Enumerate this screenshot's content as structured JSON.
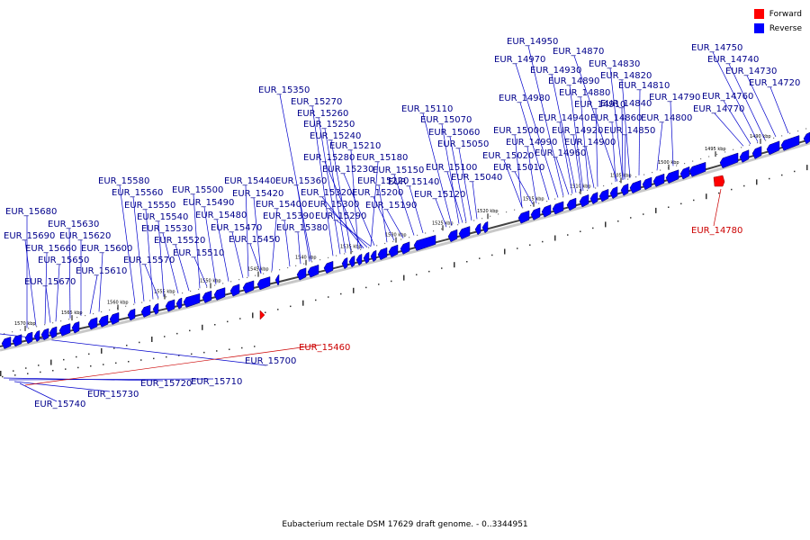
{
  "legend": {
    "forward": {
      "label": "Forward",
      "color": "#ff0000"
    },
    "reverse": {
      "label": "Reverse",
      "color": "#0000ff"
    }
  },
  "caption": "Eubacterium rectale DSM 17629 draft genome. - 0..3344951",
  "colors": {
    "backbone": "#444444",
    "forward": "#ff0000",
    "reverse": "#0000ff",
    "leader_reverse": "#0000cc",
    "leader_forward": "#cc0000",
    "text_reverse": "#00008b",
    "text_forward": "#cc0000"
  },
  "tick_labels": [
    "1570 kbp",
    "1565 kbp",
    "1560 kbp",
    "1555 kbp",
    "1550 kbp",
    "1545 kbp",
    "1540 kbp",
    "1535 kbp",
    "1530 kbp",
    "1525 kbp",
    "1520 kbp",
    "1515 kbp",
    "1510 kbp",
    "1505 kbp",
    "1500 kbp",
    "1495 kbp",
    "1490 kbp"
  ],
  "genes": [
    {
      "id": "EUR_15680",
      "strand": "reverse"
    },
    {
      "id": "EUR_15690",
      "strand": "reverse"
    },
    {
      "id": "EUR_15670",
      "strand": "reverse"
    },
    {
      "id": "EUR_15660",
      "strand": "reverse"
    },
    {
      "id": "EUR_15650",
      "strand": "reverse"
    },
    {
      "id": "EUR_15630",
      "strand": "reverse"
    },
    {
      "id": "EUR_15620",
      "strand": "reverse"
    },
    {
      "id": "EUR_15600",
      "strand": "reverse"
    },
    {
      "id": "EUR_15610",
      "strand": "reverse"
    },
    {
      "id": "EUR_15580",
      "strand": "reverse"
    },
    {
      "id": "EUR_15560",
      "strand": "reverse"
    },
    {
      "id": "EUR_15550",
      "strand": "reverse"
    },
    {
      "id": "EUR_15540",
      "strand": "reverse"
    },
    {
      "id": "EUR_15530",
      "strand": "reverse"
    },
    {
      "id": "EUR_15570",
      "strand": "reverse"
    },
    {
      "id": "EUR_15520",
      "strand": "reverse"
    },
    {
      "id": "EUR_15510",
      "strand": "reverse"
    },
    {
      "id": "EUR_15500",
      "strand": "reverse"
    },
    {
      "id": "EUR_15490",
      "strand": "reverse"
    },
    {
      "id": "EUR_15480",
      "strand": "reverse"
    },
    {
      "id": "EUR_15470",
      "strand": "reverse"
    },
    {
      "id": "EUR_15450",
      "strand": "reverse"
    },
    {
      "id": "EUR_15440",
      "strand": "reverse"
    },
    {
      "id": "EUR_15420",
      "strand": "reverse"
    },
    {
      "id": "EUR_15400",
      "strand": "reverse"
    },
    {
      "id": "EUR_15390",
      "strand": "reverse"
    },
    {
      "id": "EUR_15380",
      "strand": "reverse"
    },
    {
      "id": "EUR_15360",
      "strand": "reverse"
    },
    {
      "id": "EUR_15350",
      "strand": "reverse"
    },
    {
      "id": "EUR_15270",
      "strand": "reverse"
    },
    {
      "id": "EUR_15260",
      "strand": "reverse"
    },
    {
      "id": "EUR_15250",
      "strand": "reverse"
    },
    {
      "id": "EUR_15240",
      "strand": "reverse"
    },
    {
      "id": "EUR_15210",
      "strand": "reverse"
    },
    {
      "id": "EUR_15280",
      "strand": "reverse"
    },
    {
      "id": "EUR_15180",
      "strand": "reverse"
    },
    {
      "id": "EUR_15230",
      "strand": "reverse"
    },
    {
      "id": "EUR_15220",
      "strand": "reverse"
    },
    {
      "id": "EUR_15320",
      "strand": "reverse"
    },
    {
      "id": "EUR_15300",
      "strand": "reverse"
    },
    {
      "id": "EUR_15290",
      "strand": "reverse"
    },
    {
      "id": "EUR_15200",
      "strand": "reverse"
    },
    {
      "id": "EUR_15190",
      "strand": "reverse"
    },
    {
      "id": "EUR_15150",
      "strand": "reverse"
    },
    {
      "id": "EUR_15140",
      "strand": "reverse"
    },
    {
      "id": "EUR_15120",
      "strand": "reverse"
    },
    {
      "id": "EUR_15110",
      "strand": "reverse"
    },
    {
      "id": "EUR_15070",
      "strand": "reverse"
    },
    {
      "id": "EUR_15060",
      "strand": "reverse"
    },
    {
      "id": "EUR_15050",
      "strand": "reverse"
    },
    {
      "id": "EUR_15100",
      "strand": "reverse"
    },
    {
      "id": "EUR_15040",
      "strand": "reverse"
    },
    {
      "id": "EUR_15000",
      "strand": "reverse"
    },
    {
      "id": "EUR_14990",
      "strand": "reverse"
    },
    {
      "id": "EUR_15020",
      "strand": "reverse"
    },
    {
      "id": "EUR_15010",
      "strand": "reverse"
    },
    {
      "id": "EUR_14980",
      "strand": "reverse"
    },
    {
      "id": "EUR_14970",
      "strand": "reverse"
    },
    {
      "id": "EUR_14950",
      "strand": "reverse"
    },
    {
      "id": "EUR_14930",
      "strand": "reverse"
    },
    {
      "id": "EUR_14890",
      "strand": "reverse"
    },
    {
      "id": "EUR_14880",
      "strand": "reverse"
    },
    {
      "id": "EUR_14910",
      "strand": "reverse"
    },
    {
      "id": "EUR_14940",
      "strand": "reverse"
    },
    {
      "id": "EUR_14920",
      "strand": "reverse"
    },
    {
      "id": "EUR_14900",
      "strand": "reverse"
    },
    {
      "id": "EUR_14960",
      "strand": "reverse"
    },
    {
      "id": "EUR_14870",
      "strand": "reverse"
    },
    {
      "id": "EUR_14830",
      "strand": "reverse"
    },
    {
      "id": "EUR_14820",
      "strand": "reverse"
    },
    {
      "id": "EUR_14810",
      "strand": "reverse"
    },
    {
      "id": "EUR_14840",
      "strand": "reverse"
    },
    {
      "id": "EUR_14860",
      "strand": "reverse"
    },
    {
      "id": "EUR_14850",
      "strand": "reverse"
    },
    {
      "id": "EUR_14800",
      "strand": "reverse"
    },
    {
      "id": "EUR_14790",
      "strand": "reverse"
    },
    {
      "id": "EUR_14750",
      "strand": "reverse"
    },
    {
      "id": "EUR_14740",
      "strand": "reverse"
    },
    {
      "id": "EUR_14730",
      "strand": "reverse"
    },
    {
      "id": "EUR_14720",
      "strand": "reverse"
    },
    {
      "id": "EUR_14760",
      "strand": "reverse"
    },
    {
      "id": "EUR_14770",
      "strand": "reverse"
    },
    {
      "id": "EUR_15700",
      "strand": "reverse"
    },
    {
      "id": "EUR_15720",
      "strand": "reverse"
    },
    {
      "id": "EUR_15710",
      "strand": "reverse"
    },
    {
      "id": "EUR_15730",
      "strand": "reverse"
    },
    {
      "id": "EUR_15740",
      "strand": "reverse"
    },
    {
      "id": "EUR_15460",
      "strand": "forward"
    },
    {
      "id": "EUR_14780",
      "strand": "forward"
    }
  ]
}
